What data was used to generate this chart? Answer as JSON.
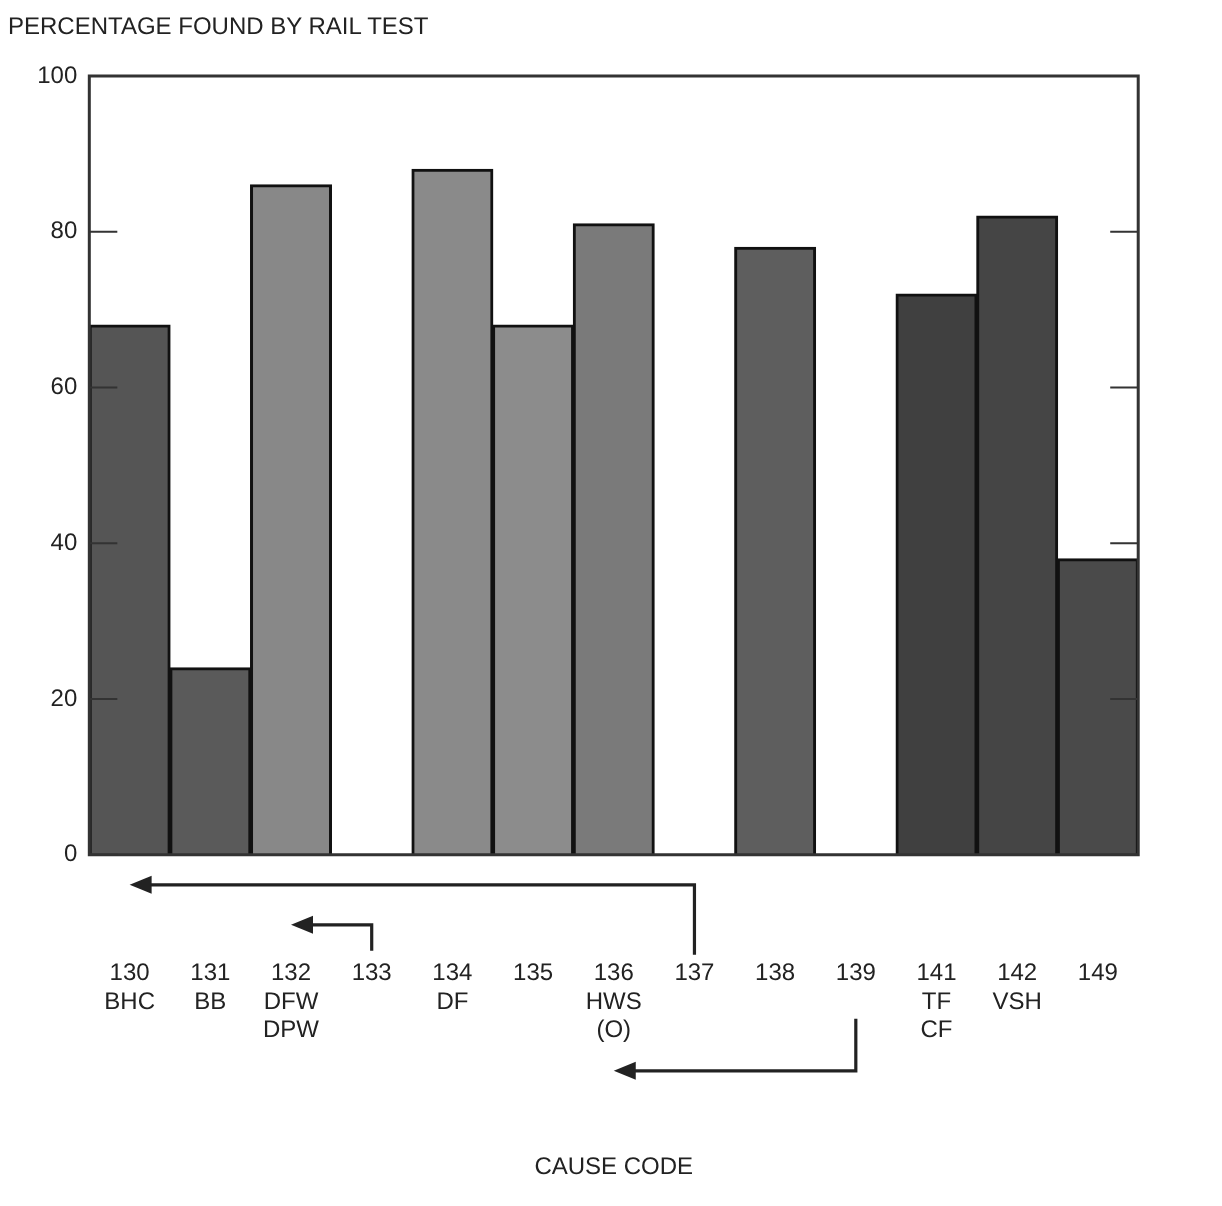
{
  "chart_data": {
    "type": "bar",
    "ylabel": "PERCENTAGE FOUND BY RAIL TEST",
    "xlabel": "CAUSE CODE",
    "categories": [
      "130\nBHC",
      "131\nBB",
      "132\nDFW\nDPW",
      "133",
      "134\nDF",
      "135",
      "136\nHWS\n(O)",
      "137",
      "138",
      "139",
      "141\nTF\nCF",
      "142\nVSH",
      "149"
    ],
    "values": [
      68,
      24,
      86,
      null,
      88,
      68,
      81,
      null,
      78,
      null,
      72,
      82,
      38
    ],
    "colors": [
      "#555555",
      "#5a5a5a",
      "#888888",
      "#777777",
      "#8a8a8a",
      "#8c8c8c",
      "#7a7a7a",
      "#777777",
      "#5e5e5e",
      "#777777",
      "#404040",
      "#454545",
      "#4a4a4a"
    ],
    "ylim": [
      0,
      100
    ],
    "yticks": [
      0,
      20,
      40,
      60,
      80,
      100
    ],
    "grid": false,
    "legend": false
  }
}
